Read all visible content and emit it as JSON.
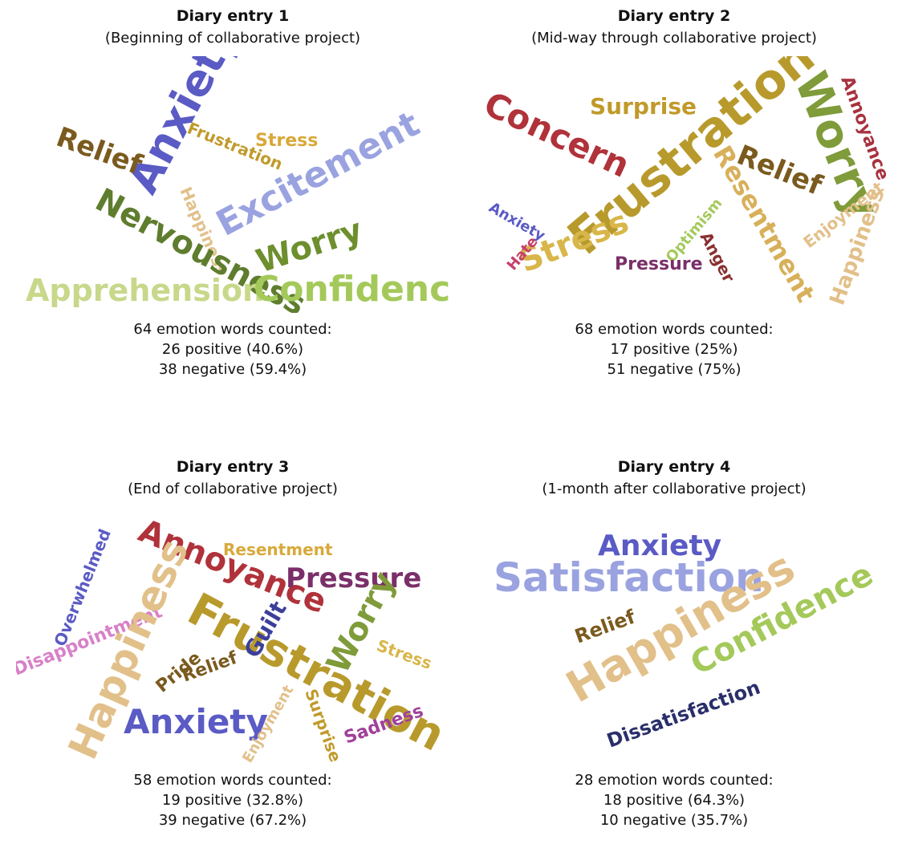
{
  "entries": [
    {
      "title": "Diary entry 1",
      "subtitle": "(Beginning of collaborative project)",
      "total": "64 emotion words counted:",
      "positive": "26 positive (40.6%)",
      "negative": "38 negative (59.4%)",
      "words": [
        {
          "text": "Anxiety",
          "color": "#5a5bc4"
        },
        {
          "text": "Relief",
          "color": "#7a5a1e"
        },
        {
          "text": "Frustration",
          "color": "#c09a2a"
        },
        {
          "text": "Stress",
          "color": "#d8a93a"
        },
        {
          "text": "Excitement",
          "color": "#9aa3e0"
        },
        {
          "text": "Happiness",
          "color": "#e2c08a"
        },
        {
          "text": "Nervousness",
          "color": "#5f7d2e"
        },
        {
          "text": "Worry",
          "color": "#6e8f2e"
        },
        {
          "text": "Apprehension",
          "color": "#c7d88a"
        },
        {
          "text": "Confidence",
          "color": "#a4c95a"
        }
      ]
    },
    {
      "title": "Diary entry 2",
      "subtitle": "(Mid-way through collaborative project)",
      "total": "68 emotion words counted:",
      "positive": "17 positive (25%)",
      "negative": "51 negative (75%)",
      "words": [
        {
          "text": "Concern",
          "color": "#b0323a"
        },
        {
          "text": "Surprise",
          "color": "#c09a2a"
        },
        {
          "text": "Frustration",
          "color": "#b89a2c"
        },
        {
          "text": "Worry",
          "color": "#7f9b3a"
        },
        {
          "text": "Annoyance",
          "color": "#a8323e"
        },
        {
          "text": "Relief",
          "color": "#7a5a1e"
        },
        {
          "text": "Resentment",
          "color": "#d8b05a"
        },
        {
          "text": "Stress",
          "color": "#d8b64a"
        },
        {
          "text": "Anxiety",
          "color": "#5a5bc4"
        },
        {
          "text": "Hate",
          "color": "#c7406a"
        },
        {
          "text": "Optimism",
          "color": "#a4c95a"
        },
        {
          "text": "Pressure",
          "color": "#7a2f6a"
        },
        {
          "text": "Anger",
          "color": "#8a3030"
        },
        {
          "text": "Enjoyment",
          "color": "#e2c08a"
        },
        {
          "text": "Happiness",
          "color": "#e2c08a"
        }
      ]
    },
    {
      "title": "Diary entry 3",
      "subtitle": "(End of collaborative project)",
      "total": "58 emotion words counted:",
      "positive": "19 positive (32.8%)",
      "negative": "39 negative (67.2%)",
      "words": [
        {
          "text": "Overwhelmed",
          "color": "#5a5bc4"
        },
        {
          "text": "Annoyance",
          "color": "#b0323a"
        },
        {
          "text": "Resentment",
          "color": "#d8a93a"
        },
        {
          "text": "Pressure",
          "color": "#7a2f6a"
        },
        {
          "text": "Disappointment",
          "color": "#d880c8"
        },
        {
          "text": "Happiness",
          "color": "#e2c08a"
        },
        {
          "text": "Frustration",
          "color": "#b89a2c"
        },
        {
          "text": "Guilt",
          "color": "#3c3f9a"
        },
        {
          "text": "Worry",
          "color": "#7f9b3a"
        },
        {
          "text": "Stress",
          "color": "#d8b64a"
        },
        {
          "text": "Pride",
          "color": "#7a5a1e"
        },
        {
          "text": "Relief",
          "color": "#7a5a1e"
        },
        {
          "text": "Anxiety",
          "color": "#5a5bc4"
        },
        {
          "text": "Enjoyment",
          "color": "#e2c08a"
        },
        {
          "text": "Surprise",
          "color": "#c09a2a"
        },
        {
          "text": "Sadness",
          "color": "#a0409a"
        }
      ]
    },
    {
      "title": "Diary entry 4",
      "subtitle": "(1-month after collaborative project)",
      "total": "28 emotion words counted:",
      "positive": "18 positive (64.3%)",
      "negative": "10 negative (35.7%)",
      "words": [
        {
          "text": "Anxiety",
          "color": "#5a5bc4"
        },
        {
          "text": "Satisfaction",
          "color": "#9aa3e0"
        },
        {
          "text": "Happiness",
          "color": "#e2c08a"
        },
        {
          "text": "Confidence",
          "color": "#a4c95a"
        },
        {
          "text": "Relief",
          "color": "#7a5a1e"
        },
        {
          "text": "Dissatisfaction",
          "color": "#2a2f6a"
        }
      ]
    }
  ]
}
